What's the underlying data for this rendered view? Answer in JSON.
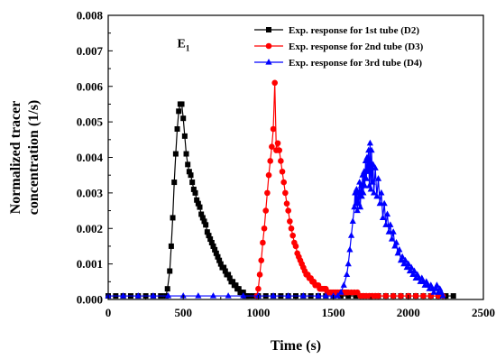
{
  "chart_data": {
    "type": "line",
    "title": "",
    "xlabel": "Time (s)",
    "ylabel_lines": [
      "Normalized tracer",
      "concentration (1/s)"
    ],
    "xlim": [
      0,
      2500
    ],
    "ylim": [
      0,
      0.008
    ],
    "x_ticks": [
      0,
      500,
      1000,
      1500,
      2000,
      2500
    ],
    "x_tick_labels": [
      "0",
      "500",
      "1000",
      "1500",
      "2000",
      "2500"
    ],
    "y_ticks": [
      0,
      0.001,
      0.002,
      0.003,
      0.004,
      0.005,
      0.006,
      0.007,
      0.008
    ],
    "y_tick_labels": [
      "0.000",
      "0.001",
      "0.002",
      "0.003",
      "0.004",
      "0.005",
      "0.006",
      "0.007",
      "0.008"
    ],
    "annotation": {
      "main": "E",
      "sub": "1",
      "x": 460,
      "y": 0.0071
    },
    "legend_position": "top-right",
    "grid": false,
    "series": [
      {
        "name": "Exp. response for 1st tube (D2)",
        "color": "#000000",
        "marker": "square",
        "points": [
          [
            0,
            0.0001
          ],
          [
            50,
            0.0001
          ],
          [
            100,
            0.0001
          ],
          [
            150,
            0.0001
          ],
          [
            200,
            0.0001
          ],
          [
            250,
            0.0001
          ],
          [
            300,
            0.0001
          ],
          [
            350,
            0.0001
          ],
          [
            385,
            0.0001
          ],
          [
            395,
            0.0003
          ],
          [
            410,
            0.0008
          ],
          [
            420,
            0.0015
          ],
          [
            430,
            0.0023
          ],
          [
            440,
            0.0033
          ],
          [
            450,
            0.0041
          ],
          [
            460,
            0.0048
          ],
          [
            470,
            0.0053
          ],
          [
            480,
            0.0055
          ],
          [
            490,
            0.0055
          ],
          [
            500,
            0.0051
          ],
          [
            510,
            0.0046
          ],
          [
            520,
            0.0041
          ],
          [
            530,
            0.0038
          ],
          [
            540,
            0.0036
          ],
          [
            550,
            0.0035
          ],
          [
            560,
            0.0033
          ],
          [
            570,
            0.0031
          ],
          [
            580,
            0.003
          ],
          [
            590,
            0.0028
          ],
          [
            600,
            0.0027
          ],
          [
            610,
            0.0026
          ],
          [
            620,
            0.0024
          ],
          [
            630,
            0.0023
          ],
          [
            640,
            0.0022
          ],
          [
            650,
            0.0021
          ],
          [
            660,
            0.0019
          ],
          [
            670,
            0.0018
          ],
          [
            680,
            0.0017
          ],
          [
            690,
            0.0016
          ],
          [
            700,
            0.0015
          ],
          [
            710,
            0.0014
          ],
          [
            720,
            0.0013
          ],
          [
            730,
            0.0012
          ],
          [
            740,
            0.0011
          ],
          [
            750,
            0.001
          ],
          [
            760,
            0.0009
          ],
          [
            770,
            0.0009
          ],
          [
            780,
            0.0008
          ],
          [
            790,
            0.0007
          ],
          [
            800,
            0.0007
          ],
          [
            810,
            0.0006
          ],
          [
            820,
            0.0005
          ],
          [
            830,
            0.0005
          ],
          [
            840,
            0.0004
          ],
          [
            850,
            0.0004
          ],
          [
            860,
            0.0003
          ],
          [
            870,
            0.0003
          ],
          [
            880,
            0.0002
          ],
          [
            890,
            0.0002
          ],
          [
            900,
            0.0002
          ],
          [
            910,
            0.0001
          ],
          [
            920,
            0.0001
          ],
          [
            940,
            0.0001
          ],
          [
            970,
            0.0001
          ],
          [
            1000,
            0.0001
          ],
          [
            1050,
            0.0001
          ],
          [
            1100,
            0.0001
          ],
          [
            1150,
            0.0001
          ],
          [
            1200,
            0.0001
          ],
          [
            1250,
            0.0001
          ],
          [
            1300,
            0.0001
          ],
          [
            1350,
            0.0001
          ],
          [
            1400,
            0.0001
          ],
          [
            1450,
            0.0001
          ],
          [
            1500,
            0.0001
          ],
          [
            1550,
            0.0001
          ],
          [
            1600,
            0.0001
          ],
          [
            1650,
            0.0001
          ],
          [
            1700,
            0.0001
          ],
          [
            1750,
            0.0001
          ],
          [
            1800,
            0.0001
          ],
          [
            1850,
            0.0001
          ],
          [
            1900,
            0.0001
          ],
          [
            1950,
            0.0001
          ],
          [
            2000,
            0.0001
          ],
          [
            2050,
            0.0001
          ],
          [
            2100,
            0.0001
          ],
          [
            2150,
            0.0001
          ],
          [
            2200,
            0.0001
          ],
          [
            2250,
            0.0001
          ],
          [
            2300,
            0.0001
          ]
        ]
      },
      {
        "name": "Exp. response for 2nd tube (D3)",
        "color": "#ff0000",
        "marker": "circle",
        "points": [
          [
            990,
            0.0001
          ],
          [
            1000,
            0.0003
          ],
          [
            1010,
            0.0007
          ],
          [
            1020,
            0.0011
          ],
          [
            1030,
            0.0016
          ],
          [
            1040,
            0.002
          ],
          [
            1050,
            0.0025
          ],
          [
            1060,
            0.003
          ],
          [
            1070,
            0.0035
          ],
          [
            1080,
            0.0039
          ],
          [
            1090,
            0.0043
          ],
          [
            1100,
            0.0048
          ],
          [
            1110,
            0.0061
          ],
          [
            1120,
            0.0042
          ],
          [
            1130,
            0.0044
          ],
          [
            1140,
            0.0042
          ],
          [
            1150,
            0.0039
          ],
          [
            1160,
            0.0036
          ],
          [
            1170,
            0.0033
          ],
          [
            1180,
            0.003
          ],
          [
            1190,
            0.0027
          ],
          [
            1200,
            0.0025
          ],
          [
            1210,
            0.0022
          ],
          [
            1220,
            0.002
          ],
          [
            1230,
            0.0018
          ],
          [
            1240,
            0.0016
          ],
          [
            1250,
            0.0015
          ],
          [
            1260,
            0.0013
          ],
          [
            1270,
            0.0012
          ],
          [
            1280,
            0.0011
          ],
          [
            1290,
            0.001
          ],
          [
            1300,
            0.0009
          ],
          [
            1310,
            0.0008
          ],
          [
            1320,
            0.0007
          ],
          [
            1330,
            0.0007
          ],
          [
            1340,
            0.0006
          ],
          [
            1350,
            0.0006
          ],
          [
            1360,
            0.0005
          ],
          [
            1370,
            0.0005
          ],
          [
            1380,
            0.0004
          ],
          [
            1390,
            0.0004
          ],
          [
            1400,
            0.0004
          ],
          [
            1410,
            0.0003
          ],
          [
            1420,
            0.0003
          ],
          [
            1430,
            0.0003
          ],
          [
            1440,
            0.0003
          ],
          [
            1450,
            0.0003
          ],
          [
            1460,
            0.0002
          ],
          [
            1470,
            0.0002
          ],
          [
            1480,
            0.0002
          ],
          [
            1490,
            0.0002
          ],
          [
            1500,
            0.0002
          ],
          [
            1510,
            0.0002
          ],
          [
            1520,
            0.0002
          ],
          [
            1530,
            0.0002
          ],
          [
            1540,
            0.0002
          ],
          [
            1550,
            0.0002
          ],
          [
            1560,
            0.0002
          ],
          [
            1570,
            0.0002
          ],
          [
            1580,
            0.0002
          ],
          [
            1590,
            0.0002
          ],
          [
            1600,
            0.0002
          ],
          [
            1620,
            0.0002
          ],
          [
            1640,
            0.0002
          ],
          [
            1660,
            0.0002
          ],
          [
            1680,
            0.0001
          ],
          [
            1700,
            0.0001
          ],
          [
            1720,
            0.0001
          ],
          [
            1740,
            0.0001
          ],
          [
            1760,
            0.0001
          ],
          [
            1780,
            0.0001
          ],
          [
            1800,
            0.0001
          ],
          [
            1850,
            0.0001
          ],
          [
            1900,
            0.0001
          ],
          [
            1950,
            0.0001
          ],
          [
            2000,
            0.0001
          ],
          [
            2050,
            0.0001
          ],
          [
            2100,
            0.0001
          ],
          [
            2150,
            0.0001
          ],
          [
            2200,
            0.0001
          ],
          [
            2230,
            0.0001
          ]
        ]
      },
      {
        "name": "Exp. response for 3rd tube (D4)",
        "color": "#0000ff",
        "marker": "triangle",
        "points": [
          [
            0,
            0.0001
          ],
          [
            100,
            0.0001
          ],
          [
            200,
            0.0001
          ],
          [
            300,
            0.0001
          ],
          [
            400,
            0.0001
          ],
          [
            500,
            0.0001
          ],
          [
            600,
            0.0001
          ],
          [
            700,
            0.0001
          ],
          [
            800,
            0.0001
          ],
          [
            900,
            0.0001
          ],
          [
            1000,
            0.0001
          ],
          [
            1100,
            0.0001
          ],
          [
            1200,
            0.0001
          ],
          [
            1300,
            0.0001
          ],
          [
            1400,
            0.0001
          ],
          [
            1450,
            0.0001
          ],
          [
            1500,
            0.0001
          ],
          [
            1530,
            0.0001
          ],
          [
            1550,
            0.0002
          ],
          [
            1570,
            0.0004
          ],
          [
            1590,
            0.0007
          ],
          [
            1600,
            0.001
          ],
          [
            1610,
            0.0014
          ],
          [
            1620,
            0.0018
          ],
          [
            1630,
            0.0022
          ],
          [
            1640,
            0.0026
          ],
          [
            1645,
            0.003
          ],
          [
            1650,
            0.0027
          ],
          [
            1655,
            0.0031
          ],
          [
            1660,
            0.0025
          ],
          [
            1665,
            0.003
          ],
          [
            1670,
            0.0027
          ],
          [
            1675,
            0.0033
          ],
          [
            1680,
            0.0026
          ],
          [
            1685,
            0.0032
          ],
          [
            1690,
            0.0029
          ],
          [
            1695,
            0.0035
          ],
          [
            1700,
            0.003
          ],
          [
            1705,
            0.0036
          ],
          [
            1710,
            0.0032
          ],
          [
            1715,
            0.0039
          ],
          [
            1720,
            0.0034
          ],
          [
            1725,
            0.004
          ],
          [
            1730,
            0.0036
          ],
          [
            1735,
            0.0042
          ],
          [
            1740,
            0.0032
          ],
          [
            1745,
            0.0044
          ],
          [
            1750,
            0.0031
          ],
          [
            1755,
            0.0042
          ],
          [
            1760,
            0.0033
          ],
          [
            1765,
            0.0038
          ],
          [
            1770,
            0.003
          ],
          [
            1780,
            0.0037
          ],
          [
            1790,
            0.0029
          ],
          [
            1800,
            0.0034
          ],
          [
            1810,
            0.0027
          ],
          [
            1820,
            0.003
          ],
          [
            1830,
            0.0023
          ],
          [
            1840,
            0.0027
          ],
          [
            1850,
            0.0021
          ],
          [
            1860,
            0.0024
          ],
          [
            1870,
            0.0019
          ],
          [
            1880,
            0.0021
          ],
          [
            1890,
            0.0017
          ],
          [
            1900,
            0.0019
          ],
          [
            1910,
            0.0015
          ],
          [
            1920,
            0.0016
          ],
          [
            1930,
            0.0013
          ],
          [
            1940,
            0.0014
          ],
          [
            1950,
            0.0011
          ],
          [
            1960,
            0.0012
          ],
          [
            1970,
            0.001
          ],
          [
            1980,
            0.0011
          ],
          [
            1990,
            0.0009
          ],
          [
            2000,
            0.001
          ],
          [
            2010,
            0.0008
          ],
          [
            2020,
            0.0009
          ],
          [
            2030,
            0.0007
          ],
          [
            2040,
            0.0008
          ],
          [
            2050,
            0.0006
          ],
          [
            2060,
            0.0007
          ],
          [
            2070,
            0.0006
          ],
          [
            2080,
            0.0005
          ],
          [
            2090,
            0.0006
          ],
          [
            2100,
            0.0005
          ],
          [
            2110,
            0.0004
          ],
          [
            2120,
            0.0005
          ],
          [
            2130,
            0.0004
          ],
          [
            2140,
            0.0003
          ],
          [
            2150,
            0.0004
          ],
          [
            2160,
            0.0003
          ],
          [
            2170,
            0.0002
          ],
          [
            2180,
            0.0003
          ],
          [
            2190,
            0.0004
          ],
          [
            2200,
            0.0002
          ],
          [
            2210,
            0.0003
          ],
          [
            2220,
            0.0002
          ],
          [
            2230,
            0.0001
          ]
        ]
      }
    ]
  }
}
